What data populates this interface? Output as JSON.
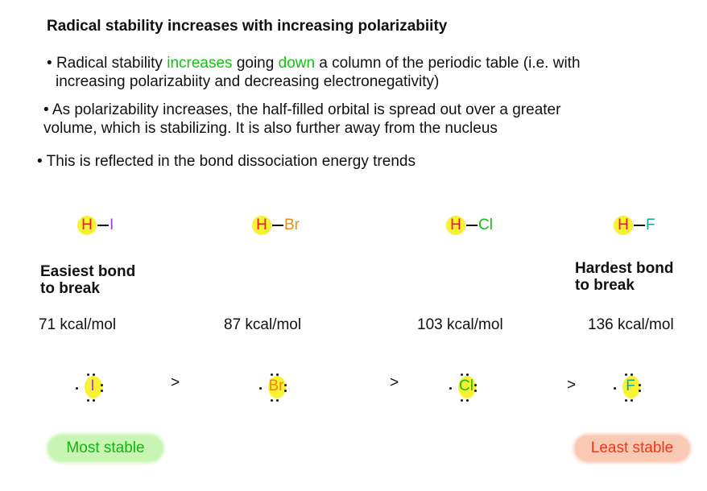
{
  "title": "Radical stability increases with increasing polarizabiity",
  "bullets": {
    "b1": {
      "marker": "•",
      "pre": "Radical stability ",
      "hl1": "increases",
      "mid": " going ",
      "hl2": "down",
      "post": " a column of the periodic table (i.e. with",
      "line2": "increasing polarizabiity and decreasing electronegativity)"
    },
    "b2": {
      "marker": "•",
      "line1": "As polarizability increases, the half-filled orbital is spread out over a greater",
      "line2": "volume, which is stabilizing. It is also further away from the nucleus"
    },
    "b3": {
      "marker": "•",
      "text": "This is reflected in the bond dissociation energy trends"
    }
  },
  "molecules": [
    {
      "h": "H",
      "x": "I",
      "x_color": "#a23ddb"
    },
    {
      "h": "H",
      "x": "Br",
      "x_color": "#f08a0a"
    },
    {
      "h": "H",
      "x": "Cl",
      "x_color": "#14c014"
    },
    {
      "h": "H",
      "x": "F",
      "x_color": "#13a6a0"
    }
  ],
  "labels": {
    "easiest_l1": "Easiest bond",
    "easiest_l2": "to break",
    "hardest_l1": "Hardest bond",
    "hardest_l2": "to break"
  },
  "energies": [
    "71 kcal/mol",
    "87 kcal/mol",
    "103 kcal/mol",
    "136 kcal/mol"
  ],
  "radicals": [
    {
      "symbol": "I",
      "color": "#a23ddb"
    },
    {
      "symbol": "Br",
      "color": "#f08a0a"
    },
    {
      "symbol": "Cl",
      "color": "#14c014"
    },
    {
      "symbol": "F",
      "color": "#13a6a0"
    }
  ],
  "comparator": ">",
  "stability": {
    "most": "Most stable",
    "least": "Least stable",
    "most_color": "#13b313",
    "least_color": "#f0361a"
  }
}
